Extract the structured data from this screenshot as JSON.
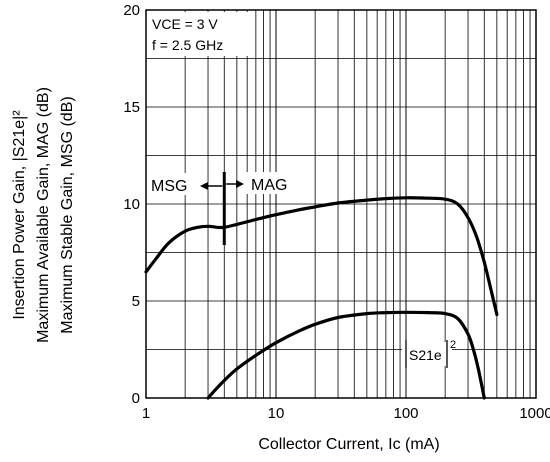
{
  "chart_data": {
    "type": "line",
    "xscale": "log",
    "xlim": [
      1,
      1000
    ],
    "ylim": [
      0,
      20
    ],
    "grid": true,
    "xticks": [
      1,
      10,
      100,
      1000
    ],
    "xtick_labels": [
      "1",
      "10",
      "100",
      "1000"
    ],
    "yticks": [
      0,
      5,
      10,
      15,
      20
    ],
    "ytick_labels": [
      "0",
      "5",
      "10",
      "15",
      "20"
    ],
    "xlabel": "Collector Current, Ic (mA)",
    "ylabel_lines": [
      "Insertion Power Gain, |S21e|²",
      "Maximum Available Gain, MAG (dB)",
      "Maximum Stable Gain, MSG (dB)"
    ],
    "conditions": [
      "VCE = 3 V",
      "f = 2.5 GHz"
    ],
    "annotations": {
      "msg": "MSG",
      "mag": "MAG",
      "divider_x": 4
    },
    "series": [
      {
        "name": "MSG / MAG",
        "color": "#000000",
        "x": [
          1,
          1.2,
          1.5,
          2,
          2.5,
          3,
          3.5,
          4,
          5,
          7,
          10,
          15,
          20,
          30,
          50,
          70,
          100,
          150,
          200,
          250,
          300,
          350,
          400,
          450,
          500
        ],
        "y": [
          6.5,
          7.2,
          8.0,
          8.6,
          8.8,
          8.85,
          8.8,
          8.8,
          8.95,
          9.2,
          9.45,
          9.7,
          9.85,
          10.05,
          10.2,
          10.28,
          10.32,
          10.3,
          10.25,
          10.0,
          9.3,
          8.3,
          7.0,
          5.6,
          4.3
        ]
      },
      {
        "name": "|S21e|²",
        "color": "#000000",
        "x": [
          3,
          3.5,
          4,
          5,
          7,
          10,
          15,
          20,
          30,
          50,
          70,
          100,
          150,
          200,
          250,
          300,
          330,
          360,
          400
        ],
        "y": [
          0,
          0.5,
          0.9,
          1.5,
          2.2,
          2.85,
          3.45,
          3.8,
          4.15,
          4.35,
          4.4,
          4.42,
          4.4,
          4.35,
          4.1,
          3.3,
          2.5,
          1.5,
          0
        ]
      }
    ],
    "series_labels": {
      "s21_main": "S21e",
      "s21_sup": "2"
    }
  }
}
